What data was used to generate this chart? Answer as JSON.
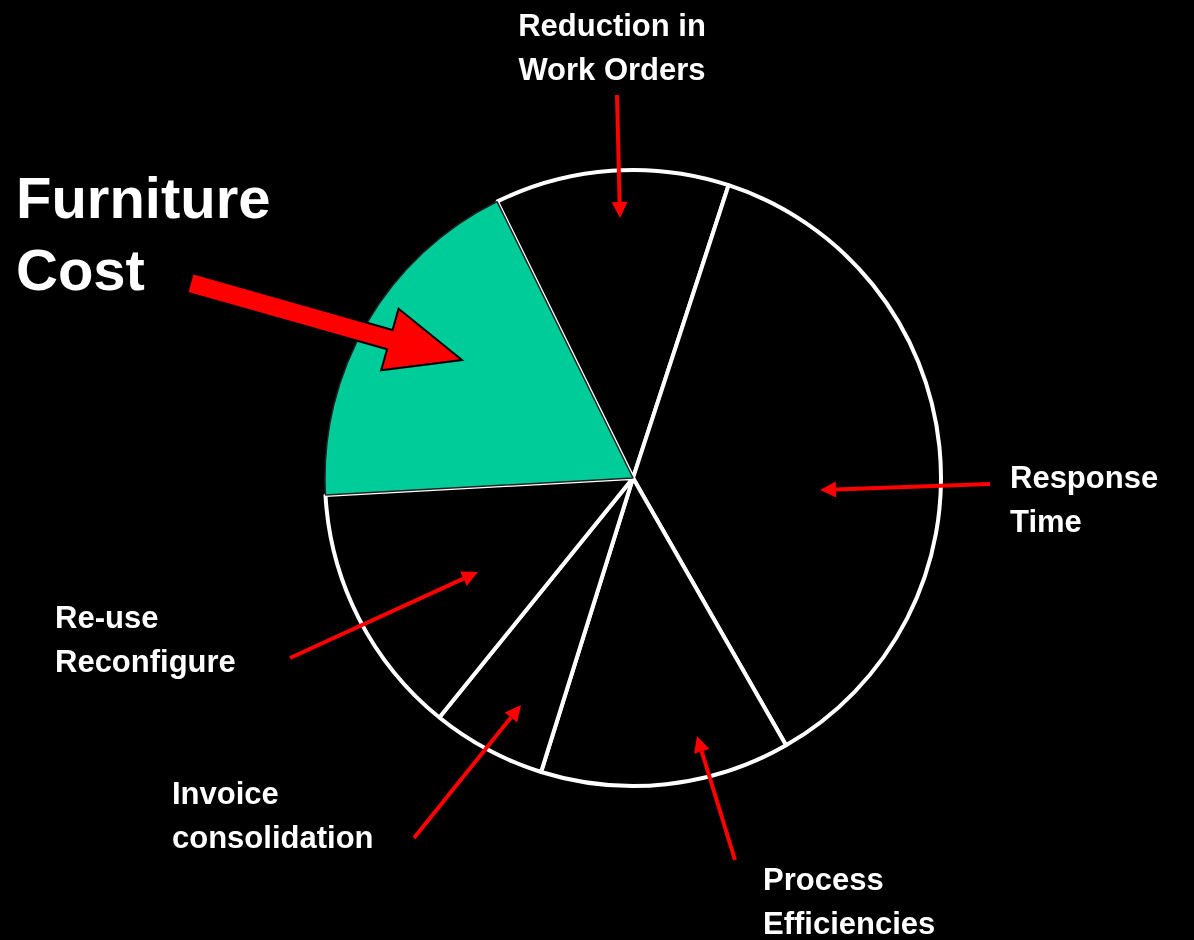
{
  "chart_data": {
    "type": "pie",
    "categories": [
      "Reduction in Work Orders",
      "Response Time",
      "Process Efficiencies",
      "Invoice consolidation",
      "Re-use Reconfigure",
      "Furniture Cost"
    ],
    "values": [
      12.3,
      36.7,
      13.1,
      6.0,
      13.3,
      18.6
    ],
    "colors": [
      "#000000",
      "#000000",
      "#000000",
      "#000000",
      "#000000",
      "#00cc99"
    ]
  }
}
